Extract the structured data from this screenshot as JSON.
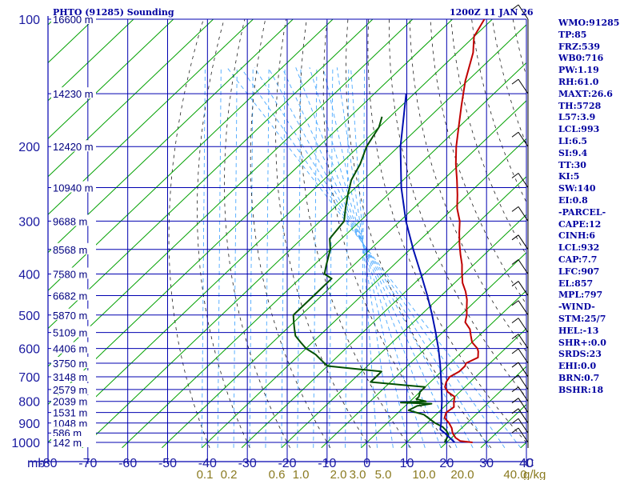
{
  "header": {
    "station": "PHTO (91285) Sounding",
    "time": "1200Z 11 JAN 26"
  },
  "stats": [
    "WMO:91285",
    "TP:85",
    "FRZ:539",
    "WB0:716",
    "PW:1.19",
    "RH:61.0",
    "MAXT:26.6",
    "TH:5728",
    "L57:3.9",
    "LCL:993",
    "LI:6.5",
    "SI:9.4",
    "TT:30",
    "KI:5",
    "SW:140",
    "EI:0.8",
    "-PARCEL-",
    "CAPE:12",
    "CINH:6",
    "LCL:932",
    "CAP:7.7",
    "LFC:907",
    "EL:857",
    "MPL:797",
    "-WIND-",
    "STM:25/7",
    "HEL:-13",
    "SHR+:0.0",
    "SRDS:23",
    "EHI:0.0",
    "BRN:0.7",
    "BSHR:18"
  ],
  "chart_data": {
    "type": "line",
    "title": "PHTO (91285) Sounding",
    "subtitle": "1200Z 11 JAN 26",
    "xlabel": "",
    "ylabel": "mb",
    "x_unit_label": "C",
    "mixing_ratio_unit_label": "g/kg",
    "pressure_levels": [
      100,
      200,
      300,
      400,
      500,
      600,
      700,
      800,
      900,
      1000
    ],
    "height_labels": [
      {
        "p": 100,
        "label": "16600 m"
      },
      {
        "p": 150,
        "label": "14230 m"
      },
      {
        "p": 200,
        "label": "12420 m"
      },
      {
        "p": 250,
        "label": "10940 m"
      },
      {
        "p": 300,
        "label": "9688 m"
      },
      {
        "p": 350,
        "label": "8568 m"
      },
      {
        "p": 400,
        "label": "7580 m"
      },
      {
        "p": 450,
        "label": "6682 m"
      },
      {
        "p": 500,
        "label": "5870 m"
      },
      {
        "p": 550,
        "label": "5109 m"
      },
      {
        "p": 600,
        "label": "4406 m"
      },
      {
        "p": 650,
        "label": "3750 m"
      },
      {
        "p": 700,
        "label": "3148 m"
      },
      {
        "p": 750,
        "label": "2579 m"
      },
      {
        "p": 800,
        "label": "2039 m"
      },
      {
        "p": 850,
        "label": "1531 m"
      },
      {
        "p": 900,
        "label": "1048 m"
      },
      {
        "p": 950,
        "label": "586 m"
      },
      {
        "p": 1000,
        "label": "142 m"
      }
    ],
    "x_ticks": [
      -80,
      -70,
      -60,
      -50,
      -40,
      -30,
      -20,
      -10,
      0,
      10,
      20,
      30,
      40
    ],
    "xlim": [
      -80,
      40
    ],
    "ylim": [
      1030,
      100
    ],
    "log_pressure": true,
    "mixing_ratio_labels": [
      "0.1",
      "0.2",
      "0.6",
      "1.0",
      "2.0",
      "3.0",
      "5.0",
      "10.0",
      "20.0",
      "40.0"
    ],
    "colors": {
      "grid": "#0000b0",
      "isotherm": "#00a000",
      "dry_adiabat": "#202020",
      "moist_adiabat": "#4aa8ff",
      "temperature": "#c00000",
      "dewpoint": "#005000",
      "parcel": "#0010b0",
      "mixing_label": "#8a7a20"
    },
    "series": [
      {
        "points": [
          {
            "p": 1000,
            "t": 26.5
          },
          {
            "p": 992,
            "t": 23
          },
          {
            "p": 975,
            "t": 21
          },
          {
            "p": 950,
            "t": 19
          },
          {
            "p": 925,
            "t": 17.5
          },
          {
            "p": 900,
            "t": 15.5
          },
          {
            "p": 875,
            "t": 13
          },
          {
            "p": 850,
            "t": 12
          },
          {
            "p": 825,
            "t": 12.5
          },
          {
            "p": 800,
            "t": 11
          },
          {
            "p": 780,
            "t": 10
          },
          {
            "p": 760,
            "t": 7
          },
          {
            "p": 740,
            "t": 5
          },
          {
            "p": 720,
            "t": 4
          },
          {
            "p": 700,
            "t": 3.5
          },
          {
            "p": 680,
            "t": 4.5
          },
          {
            "p": 660,
            "t": 4.5
          },
          {
            "p": 650,
            "t": 4
          },
          {
            "p": 630,
            "t": 5.5
          },
          {
            "p": 610,
            "t": 4
          },
          {
            "p": 600,
            "t": 3
          },
          {
            "p": 580,
            "t": 0
          },
          {
            "p": 560,
            "t": -2
          },
          {
            "p": 540,
            "t": -4
          },
          {
            "p": 520,
            "t": -7
          },
          {
            "p": 500,
            "t": -8.5
          },
          {
            "p": 480,
            "t": -10.5
          },
          {
            "p": 460,
            "t": -12.5
          },
          {
            "p": 440,
            "t": -15
          },
          {
            "p": 420,
            "t": -18
          },
          {
            "p": 400,
            "t": -20.5
          },
          {
            "p": 380,
            "t": -23
          },
          {
            "p": 360,
            "t": -26
          },
          {
            "p": 340,
            "t": -29
          },
          {
            "p": 320,
            "t": -32
          },
          {
            "p": 300,
            "t": -35
          },
          {
            "p": 280,
            "t": -39
          },
          {
            "p": 260,
            "t": -42.5
          },
          {
            "p": 240,
            "t": -46.5
          },
          {
            "p": 220,
            "t": -51
          },
          {
            "p": 200,
            "t": -55.5
          },
          {
            "p": 180,
            "t": -60
          },
          {
            "p": 160,
            "t": -65
          },
          {
            "p": 140,
            "t": -70.5
          },
          {
            "p": 120,
            "t": -76
          },
          {
            "p": 110,
            "t": -80
          },
          {
            "p": 100,
            "t": -82
          }
        ]
      },
      {
        "points": [
          {
            "p": 1000,
            "t": 19.5
          },
          {
            "p": 980,
            "t": 19
          },
          {
            "p": 960,
            "t": 18.5
          },
          {
            "p": 940,
            "t": 17
          },
          {
            "p": 920,
            "t": 15
          },
          {
            "p": 900,
            "t": 12
          },
          {
            "p": 880,
            "t": 9.5
          },
          {
            "p": 860,
            "t": 7
          },
          {
            "p": 840,
            "t": 2
          },
          {
            "p": 820,
            "t": 3
          },
          {
            "p": 810,
            "t": 6
          },
          {
            "p": 805,
            "t": -2
          },
          {
            "p": 800,
            "t": 4
          },
          {
            "p": 790,
            "t": 1
          },
          {
            "p": 780,
            "t": 1
          },
          {
            "p": 760,
            "t": 0
          },
          {
            "p": 740,
            "t": 0
          },
          {
            "p": 720,
            "t": -15
          },
          {
            "p": 700,
            "t": -15
          },
          {
            "p": 680,
            "t": -15
          },
          {
            "p": 660,
            "t": -30
          },
          {
            "p": 640,
            "t": -33
          },
          {
            "p": 620,
            "t": -36
          },
          {
            "p": 600,
            "t": -40
          },
          {
            "p": 580,
            "t": -43
          },
          {
            "p": 560,
            "t": -46
          },
          {
            "p": 540,
            "t": -48
          },
          {
            "p": 520,
            "t": -50
          },
          {
            "p": 500,
            "t": -52
          },
          {
            "p": 480,
            "t": -52
          },
          {
            "p": 460,
            "t": -52
          },
          {
            "p": 440,
            "t": -52
          },
          {
            "p": 420,
            "t": -52
          },
          {
            "p": 410,
            "t": -52
          },
          {
            "p": 400,
            "t": -55
          },
          {
            "p": 380,
            "t": -57
          },
          {
            "p": 350,
            "t": -60
          },
          {
            "p": 330,
            "t": -63
          },
          {
            "p": 300,
            "t": -64
          },
          {
            "p": 280,
            "t": -67
          },
          {
            "p": 260,
            "t": -70
          },
          {
            "p": 240,
            "t": -73
          },
          {
            "p": 220,
            "t": -75
          },
          {
            "p": 200,
            "t": -78
          },
          {
            "p": 180,
            "t": -80
          },
          {
            "p": 170,
            "t": -82
          }
        ]
      },
      {
        "points": [
          {
            "p": 1000,
            "t": 22
          },
          {
            "p": 950,
            "t": 17
          },
          {
            "p": 932,
            "t": 15
          },
          {
            "p": 900,
            "t": 13.5
          },
          {
            "p": 850,
            "t": 10.8
          },
          {
            "p": 800,
            "t": 8
          },
          {
            "p": 750,
            "t": 4.8
          },
          {
            "p": 700,
            "t": 1.3
          },
          {
            "p": 650,
            "t": -2.5
          },
          {
            "p": 600,
            "t": -6.8
          },
          {
            "p": 550,
            "t": -11.7
          },
          {
            "p": 500,
            "t": -17.2
          },
          {
            "p": 450,
            "t": -23.5
          },
          {
            "p": 400,
            "t": -30.8
          },
          {
            "p": 350,
            "t": -39.2
          },
          {
            "p": 300,
            "t": -48.5
          },
          {
            "p": 250,
            "t": -58.5
          },
          {
            "p": 200,
            "t": -69.5
          },
          {
            "p": 150,
            "t": -82
          }
        ]
      }
    ]
  }
}
